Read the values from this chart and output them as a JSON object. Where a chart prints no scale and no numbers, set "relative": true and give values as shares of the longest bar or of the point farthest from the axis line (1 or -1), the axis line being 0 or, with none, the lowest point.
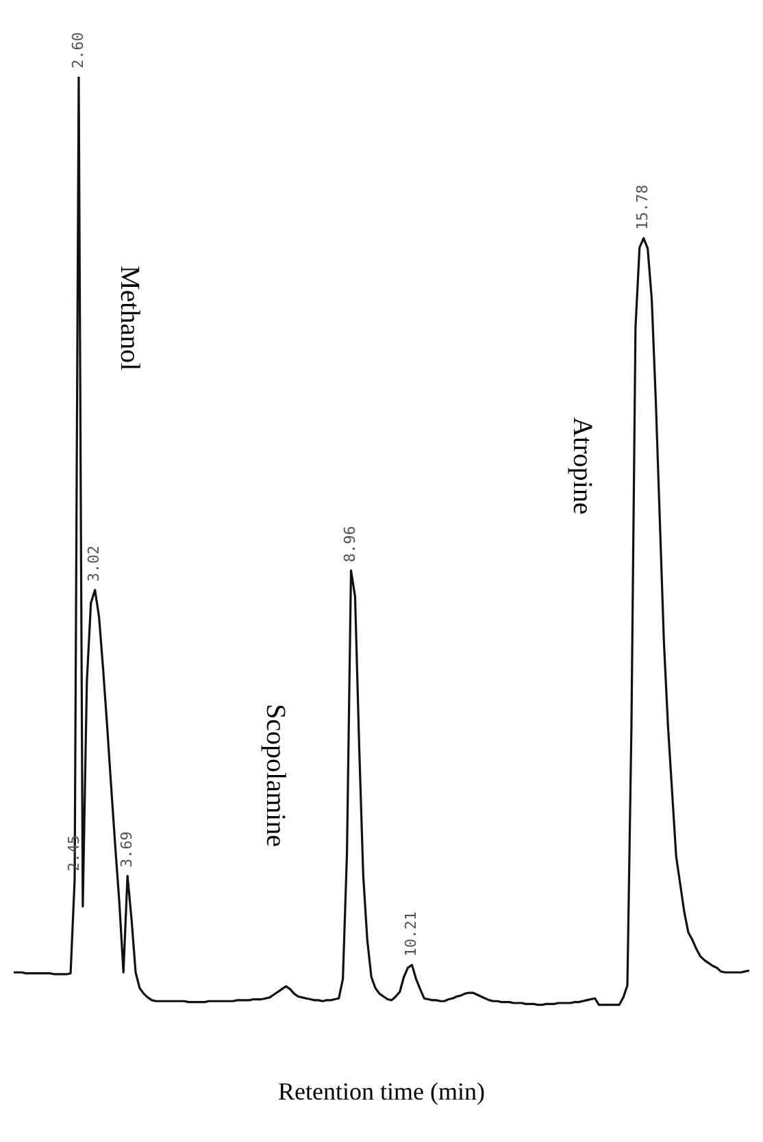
{
  "chart_data": {
    "type": "line",
    "relative": true,
    "xlabel": "Retention time (min)",
    "marker": "none",
    "line_style": "solid",
    "categories": [
      null,
      null,
      null,
      null,
      null,
      null,
      null,
      null,
      null,
      null,
      null,
      null,
      null,
      null,
      null,
      "2.45",
      "2.60",
      null,
      null,
      null,
      "3.02",
      null,
      null,
      null,
      null,
      null,
      null,
      null,
      "3.69",
      null,
      null,
      null,
      null,
      null,
      null,
      null,
      null,
      null,
      null,
      null,
      null,
      null,
      null,
      null,
      null,
      null,
      null,
      null,
      null,
      null,
      null,
      null,
      null,
      null,
      null,
      null,
      null,
      null,
      null,
      null,
      null,
      null,
      null,
      null,
      null,
      null,
      null,
      null,
      null,
      null,
      null,
      null,
      null,
      null,
      null,
      null,
      null,
      null,
      null,
      null,
      null,
      null,
      null,
      "8.96",
      null,
      null,
      null,
      null,
      null,
      null,
      null,
      null,
      null,
      null,
      null,
      null,
      null,
      null,
      "10.21",
      null,
      null,
      null,
      null,
      null,
      null,
      null,
      null,
      null,
      null,
      null,
      null,
      null,
      null,
      null,
      null,
      null,
      null,
      null,
      null,
      null,
      null,
      null,
      null,
      null,
      null,
      null,
      null,
      null,
      null,
      null,
      null,
      null,
      null,
      null,
      null,
      null,
      null,
      null,
      null,
      null,
      null,
      null,
      null,
      null,
      null,
      null,
      null,
      null,
      null,
      null,
      null,
      null,
      null,
      null,
      null,
      "15.78",
      null,
      null,
      null,
      null,
      null,
      null,
      null,
      null,
      null,
      null,
      null,
      null,
      null,
      null,
      null,
      null,
      null,
      null,
      null,
      null,
      null,
      null,
      null,
      null,
      null,
      null
    ],
    "series": [
      {
        "color": "#111111",
        "values": [
          0.035,
          0.035,
          0.035,
          0.034,
          0.034,
          0.034,
          0.034,
          0.034,
          0.034,
          0.034,
          0.033,
          0.033,
          0.033,
          0.033,
          0.034,
          0.135,
          1,
          0.106,
          0.348,
          0.433,
          0.447,
          0.418,
          0.362,
          0.3,
          0.234,
          0.17,
          0.11,
          0.035,
          0.139,
          0.092,
          0.035,
          0.018,
          0.012,
          0.008,
          0.005,
          0.004,
          0.004,
          0.004,
          0.004,
          0.004,
          0.004,
          0.004,
          0.004,
          0.003,
          0.003,
          0.003,
          0.003,
          0.003,
          0.004,
          0.004,
          0.004,
          0.004,
          0.004,
          0.004,
          0.004,
          0.005,
          0.005,
          0.005,
          0.005,
          0.006,
          0.006,
          0.006,
          0.007,
          0.008,
          0.011,
          0.014,
          0.017,
          0.02,
          0.017,
          0.012,
          0.009,
          0.008,
          0.007,
          0.006,
          0.005,
          0.005,
          0.004,
          0.005,
          0.005,
          0.006,
          0.007,
          0.028,
          0.163,
          0.468,
          0.44,
          0.28,
          0.14,
          0.07,
          0.03,
          0.018,
          0.012,
          0.009,
          0.006,
          0.005,
          0.009,
          0.014,
          0.03,
          0.04,
          0.043,
          0.028,
          0.017,
          0.007,
          0.006,
          0.005,
          0.005,
          0.004,
          0.004,
          0.006,
          0.007,
          0.009,
          0.01,
          0.012,
          0.013,
          0.013,
          0.011,
          0.009,
          0.007,
          0.005,
          0.004,
          0.004,
          0.003,
          0.003,
          0.003,
          0.002,
          0.002,
          0.002,
          0.001,
          0.001,
          0.001,
          0,
          0,
          0.001,
          0.001,
          0.001,
          0.002,
          0.002,
          0.002,
          0.002,
          0.003,
          0.003,
          0.004,
          0.005,
          0.006,
          0.007,
          0,
          0,
          0,
          0,
          0,
          0,
          0.008,
          0.021,
          0.3,
          0.73,
          0.816,
          0.826,
          0.815,
          0.76,
          0.65,
          0.52,
          0.39,
          0.3,
          0.23,
          0.16,
          0.13,
          0.1,
          0.078,
          0.07,
          0.06,
          0.052,
          0.048,
          0.045,
          0.042,
          0.04,
          0.036,
          0.035,
          0.035,
          0.035,
          0.035,
          0.035,
          0.036,
          0.037
        ]
      }
    ],
    "annotations": [
      "Methanol",
      "Scopolamine",
      "Atropine"
    ]
  }
}
